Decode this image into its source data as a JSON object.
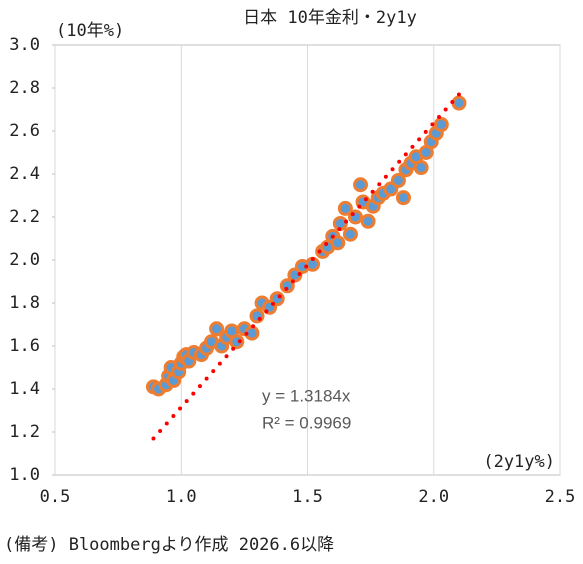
{
  "chart_data": {
    "type": "scatter",
    "title": "日本 10年金利・2y1y",
    "y_label": "(10年%)",
    "x_label": "(2y1y%)",
    "footnote": "(備考) Bloombergより作成 2026.6以降",
    "annotations": [
      "y = 1.3184x",
      "R² = 0.9969"
    ],
    "xlim": [
      0.5,
      2.5
    ],
    "ylim": [
      1.0,
      3.0
    ],
    "xticks": [
      0.5,
      {
        "value": 1.0,
        "label": "1.0"
      },
      1.5,
      {
        "value": 2.0,
        "label": "2.0"
      },
      2.5
    ],
    "yticks": [
      {
        "value": 1.0,
        "label": "1.0"
      },
      1.2,
      1.4,
      1.6,
      1.8,
      {
        "value": 2.0,
        "label": "2.0"
      },
      2.2,
      2.4,
      2.6,
      2.8,
      {
        "value": 3.0,
        "label": "3.0"
      }
    ],
    "grid_x": true,
    "marker_color": "#5b9bd5",
    "marker_edge_color": "#ed7d31",
    "x": [
      0.89,
      0.91,
      0.94,
      0.95,
      0.96,
      0.97,
      0.99,
      1.0,
      1.01,
      1.02,
      1.03,
      1.05,
      1.08,
      1.1,
      1.12,
      1.14,
      1.16,
      1.18,
      1.2,
      1.22,
      1.25,
      1.28,
      1.3,
      1.32,
      1.35,
      1.38,
      1.42,
      1.45,
      1.48,
      1.52,
      1.56,
      1.58,
      1.6,
      1.62,
      1.63,
      1.65,
      1.67,
      1.69,
      1.71,
      1.72,
      1.74,
      1.76,
      1.78,
      1.8,
      1.83,
      1.86,
      1.88,
      1.89,
      1.91,
      1.93,
      1.95,
      1.97,
      1.99,
      2.01,
      2.03,
      2.1
    ],
    "y": [
      1.41,
      1.4,
      1.42,
      1.46,
      1.5,
      1.44,
      1.48,
      1.52,
      1.55,
      1.56,
      1.53,
      1.57,
      1.56,
      1.59,
      1.62,
      1.68,
      1.6,
      1.64,
      1.67,
      1.62,
      1.68,
      1.66,
      1.74,
      1.8,
      1.78,
      1.82,
      1.88,
      1.93,
      1.97,
      1.98,
      2.04,
      2.06,
      2.11,
      2.08,
      2.17,
      2.24,
      2.12,
      2.2,
      2.35,
      2.27,
      2.18,
      2.25,
      2.29,
      2.31,
      2.33,
      2.37,
      2.29,
      2.42,
      2.45,
      2.48,
      2.43,
      2.5,
      2.55,
      2.59,
      2.63,
      2.73
    ],
    "trendline": {
      "color": "#ff0000",
      "x": [
        0.89,
        2.1
      ],
      "y": [
        1.17,
        2.77
      ]
    }
  }
}
